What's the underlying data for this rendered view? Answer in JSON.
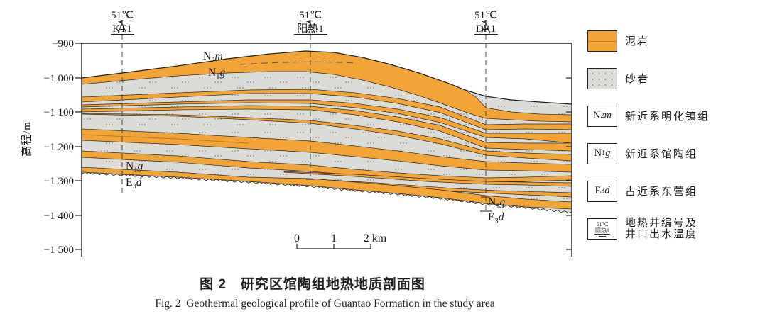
{
  "figure": {
    "axis": {
      "title": "高程/m",
      "ticks": [
        "−900",
        "−1 000",
        "−1 100",
        "−1 200",
        "−1 300",
        "−1 400",
        "−1 500"
      ]
    },
    "wells": [
      {
        "temp": "51℃",
        "name": "KT1"
      },
      {
        "temp": "51℃",
        "name": "阳热1"
      },
      {
        "temp": "51℃",
        "name": "DR1"
      }
    ],
    "strata": {
      "n2m": {
        "base": "N",
        "sub": "2",
        "it": "m"
      },
      "n1g": {
        "base": "N",
        "sub": "1",
        "it": "g"
      },
      "e3d": {
        "base": "E",
        "sub": "3",
        "it": "d"
      }
    },
    "scalebar": {
      "t0": "0",
      "t1": "1",
      "t2": "2 km"
    }
  },
  "legend": {
    "items": [
      {
        "label": "泥岩"
      },
      {
        "label": "砂岩"
      },
      {
        "base": "N",
        "sub": "2",
        "it": "m",
        "label": "新近系明化镇组"
      },
      {
        "base": "N",
        "sub": "1",
        "it": "g",
        "label": "新近系馆陶组"
      },
      {
        "base": "E",
        "sub": "3",
        "it": "d",
        "label": "古近系东营组"
      },
      {
        "temp": "51℃",
        "name": "阳热1",
        "label": "地热井编号及",
        "label2": "井口出水温度"
      }
    ]
  },
  "caption": {
    "zh": "图 2　研究区馆陶组地热地质剖面图",
    "en": "Fig. 2  Geothermal geological profile of Guantao Formation in the study area"
  },
  "colors": {
    "mudstone": "#F2A437",
    "sandstone": "#DBDBD8",
    "line": "#1f1f1f"
  }
}
